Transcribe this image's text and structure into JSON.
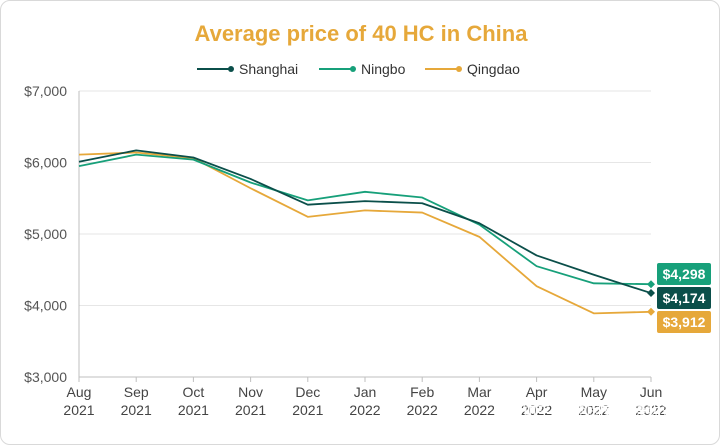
{
  "chart_data": {
    "type": "line",
    "title": "Average price of 40 HC in China",
    "categories": [
      [
        "Aug",
        "2021"
      ],
      [
        "Sep",
        "2021"
      ],
      [
        "Oct",
        "2021"
      ],
      [
        "Nov",
        "2021"
      ],
      [
        "Dec",
        "2021"
      ],
      [
        "Jan",
        "2022"
      ],
      [
        "Feb",
        "2022"
      ],
      [
        "Mar",
        "2022"
      ],
      [
        "Apr",
        "2022"
      ],
      [
        "May",
        "2022"
      ],
      [
        "Jun",
        "2022"
      ]
    ],
    "series": [
      {
        "name": "Shanghai",
        "color": "#0b4f4a",
        "values": [
          6010,
          6170,
          6070,
          5770,
          5410,
          5460,
          5430,
          5150,
          4700,
          4430,
          4174
        ],
        "end_label": "$4,174"
      },
      {
        "name": "Ningbo",
        "color": "#17a07a",
        "values": [
          5950,
          6110,
          6040,
          5720,
          5470,
          5590,
          5510,
          5130,
          4550,
          4310,
          4298
        ],
        "end_label": "$4,298"
      },
      {
        "name": "Qingdao",
        "color": "#e6a83a",
        "values": [
          6110,
          6140,
          6060,
          5640,
          5240,
          5330,
          5300,
          4960,
          4270,
          3890,
          3912
        ],
        "end_label": "$3,912"
      }
    ],
    "yticks": [
      "$3,000",
      "$4,000",
      "$5,000",
      "$6,000",
      "$7,000"
    ],
    "ylim": [
      3000,
      7000
    ],
    "xlabel": "",
    "ylabel": "",
    "grid": true,
    "legend_position": "top-center",
    "title_color": "#e6a83a"
  },
  "watermark": "知乎 @德国安世捷物流"
}
